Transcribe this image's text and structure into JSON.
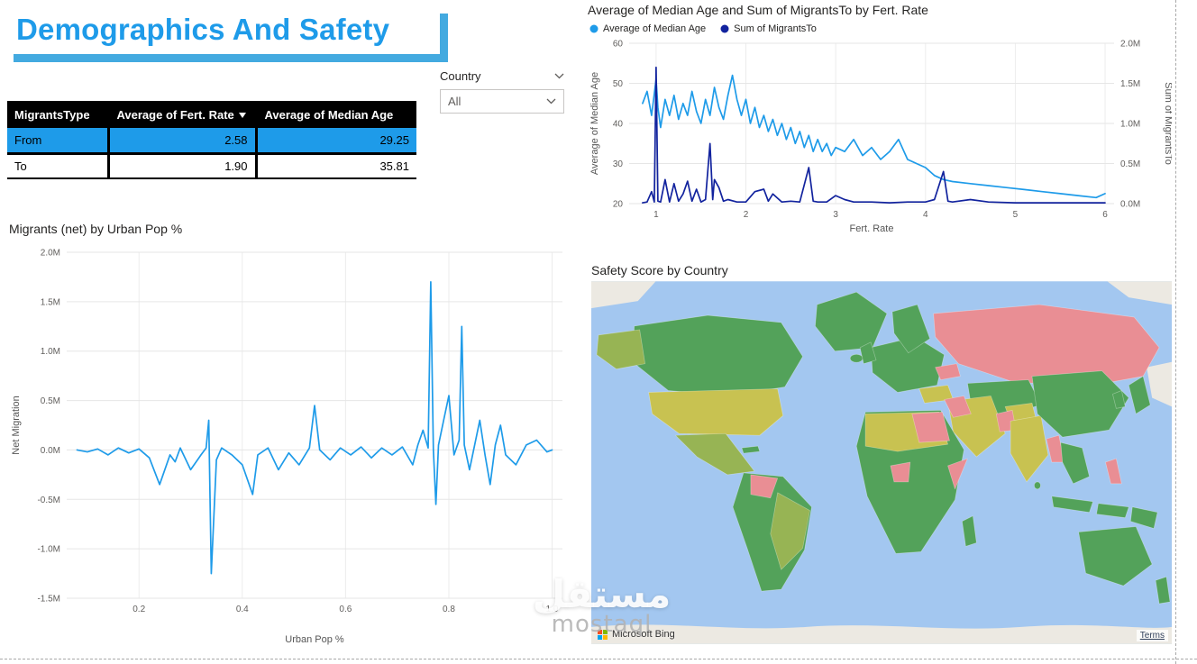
{
  "page": {
    "title": "Demographics And Safety",
    "watermark": {
      "arabic": "مستقل",
      "latin": "mostaql"
    }
  },
  "slicer": {
    "label": "Country",
    "value": "All"
  },
  "table": {
    "columns": [
      "MigrantsType",
      "Average of Fert. Rate",
      "Average of Median Age"
    ],
    "sorted_column": "Average of Fert. Rate",
    "sort_direction": "desc",
    "rows": [
      {
        "type": "From",
        "fert_rate": "2.58",
        "median_age": "29.25",
        "selected": true
      },
      {
        "type": "To",
        "fert_rate": "1.90",
        "median_age": "35.81",
        "selected": false
      }
    ]
  },
  "map": {
    "title": "Safety Score by Country",
    "attribution": "Microsoft Bing",
    "terms_label": "Terms",
    "colors": {
      "ocean": "#A3C7F0",
      "green": "#53A25A",
      "yellow": "#C8C251",
      "yellow_green": "#97B454",
      "pink": "#E98E94",
      "ice": "#ECE9E2"
    }
  },
  "colors": {
    "accent_blue": "#1E9BE9",
    "navy": "#12239E",
    "table_header_bg": "#000000",
    "selected_row": "#1E9BE9",
    "title_shadow": "#43AAE0"
  },
  "chart_data": [
    {
      "type": "line",
      "title": "Average of Median Age and Sum of MigrantsTo by Fert. Rate",
      "legend_position": "top",
      "grid": true,
      "x_axis": {
        "title": "Fert. Rate",
        "min": 0.7,
        "max": 6.1,
        "ticks": [
          {
            "v": 1,
            "l": "1"
          },
          {
            "v": 2,
            "l": "2"
          },
          {
            "v": 3,
            "l": "3"
          },
          {
            "v": 4,
            "l": "4"
          },
          {
            "v": 5,
            "l": "5"
          },
          {
            "v": 6,
            "l": "6"
          }
        ]
      },
      "y_left": {
        "title": "Average of Median Age",
        "min": 20,
        "max": 60,
        "ticks": [
          {
            "v": 20,
            "l": "20"
          },
          {
            "v": 30,
            "l": "30"
          },
          {
            "v": 40,
            "l": "40"
          },
          {
            "v": 50,
            "l": "50"
          },
          {
            "v": 60,
            "l": "60"
          }
        ]
      },
      "y_right": {
        "title": "Sum of MigrantsTo",
        "min": 0,
        "max": 2,
        "unit": "M",
        "ticks": [
          {
            "v": 0,
            "l": "0.0M"
          },
          {
            "v": 0.5,
            "l": "0.5M"
          },
          {
            "v": 1,
            "l": "1.0M"
          },
          {
            "v": 1.5,
            "l": "1.5M"
          },
          {
            "v": 2,
            "l": "2.0M"
          }
        ]
      },
      "series": [
        {
          "name": "Average of Median Age",
          "color": "#1E9BE9",
          "axis": "left",
          "x": [
            0.85,
            0.9,
            0.95,
            1.0,
            1.02,
            1.05,
            1.1,
            1.15,
            1.2,
            1.25,
            1.3,
            1.35,
            1.4,
            1.45,
            1.5,
            1.55,
            1.6,
            1.65,
            1.7,
            1.75,
            1.8,
            1.85,
            1.9,
            1.95,
            2.0,
            2.05,
            2.1,
            2.15,
            2.2,
            2.25,
            2.3,
            2.35,
            2.4,
            2.45,
            2.5,
            2.55,
            2.6,
            2.65,
            2.7,
            2.75,
            2.8,
            2.85,
            2.9,
            2.95,
            3.0,
            3.1,
            3.2,
            3.3,
            3.4,
            3.5,
            3.6,
            3.7,
            3.8,
            3.9,
            4.0,
            4.1,
            4.2,
            4.3,
            4.5,
            4.7,
            4.9,
            5.1,
            5.3,
            5.5,
            5.7,
            5.9,
            6.0
          ],
          "y": [
            45,
            48,
            42,
            51,
            44,
            39,
            46,
            42,
            47,
            41,
            45,
            42,
            48,
            43,
            40,
            46,
            42,
            49,
            44,
            41,
            47,
            52,
            46,
            42,
            46,
            40,
            44,
            39,
            42,
            38,
            41,
            37,
            40,
            36,
            39,
            35,
            38,
            34,
            37,
            33,
            36,
            33,
            35,
            32,
            34,
            33,
            36,
            32,
            34,
            31,
            33,
            36,
            31,
            30,
            29,
            27,
            26,
            25.5,
            25,
            24.5,
            24,
            23.5,
            23,
            22.5,
            22,
            21.5,
            22.5
          ]
        },
        {
          "name": "Sum of MigrantsTo",
          "color": "#12239E",
          "axis": "right",
          "x": [
            0.85,
            0.9,
            0.95,
            0.98,
            1.0,
            1.02,
            1.05,
            1.1,
            1.15,
            1.2,
            1.25,
            1.3,
            1.35,
            1.4,
            1.45,
            1.5,
            1.55,
            1.6,
            1.63,
            1.65,
            1.7,
            1.75,
            1.8,
            1.9,
            2.0,
            2.1,
            2.2,
            2.25,
            2.3,
            2.4,
            2.5,
            2.6,
            2.7,
            2.75,
            2.8,
            2.9,
            3.0,
            3.1,
            3.2,
            3.4,
            3.6,
            3.8,
            4.0,
            4.1,
            4.2,
            4.25,
            4.3,
            4.5,
            4.7,
            5.0,
            5.3,
            5.6,
            5.9,
            6.0
          ],
          "y": [
            0.01,
            0.02,
            0.15,
            0.02,
            1.7,
            0.03,
            0.02,
            0.3,
            0.02,
            0.25,
            0.03,
            0.12,
            0.28,
            0.03,
            0.18,
            0.02,
            0.05,
            0.75,
            0.05,
            0.3,
            0.2,
            0.03,
            0.05,
            0.02,
            0.02,
            0.15,
            0.18,
            0.03,
            0.12,
            0.02,
            0.03,
            0.02,
            0.45,
            0.03,
            0.02,
            0.02,
            0.1,
            0.05,
            0.02,
            0.02,
            0.01,
            0.02,
            0.02,
            0.05,
            0.4,
            0.03,
            0.02,
            0.05,
            0.02,
            0.01,
            0.01,
            0.01,
            0.01,
            0.01
          ]
        }
      ]
    },
    {
      "type": "line",
      "title": "Migrants (net) by Urban Pop %",
      "grid": true,
      "x_axis": {
        "title": "Urban Pop %",
        "min": 0.06,
        "max": 1.02,
        "ticks": [
          {
            "v": 0.2,
            "l": "0.2"
          },
          {
            "v": 0.4,
            "l": "0.4"
          },
          {
            "v": 0.6,
            "l": "0.6"
          },
          {
            "v": 0.8,
            "l": "0.8"
          },
          {
            "v": 1.0,
            "l": "1.0"
          }
        ]
      },
      "y_left": {
        "title": "Net Migration",
        "min": -1.5,
        "max": 2.0,
        "unit": "M",
        "ticks": [
          {
            "v": -1.5,
            "l": "-1.5M"
          },
          {
            "v": -1.0,
            "l": "-1.0M"
          },
          {
            "v": -0.5,
            "l": "-0.5M"
          },
          {
            "v": 0,
            "l": "0.0M"
          },
          {
            "v": 0.5,
            "l": "0.5M"
          },
          {
            "v": 1.0,
            "l": "1.0M"
          },
          {
            "v": 1.5,
            "l": "1.5M"
          },
          {
            "v": 2.0,
            "l": "2.0M"
          }
        ]
      },
      "series": [
        {
          "name": "Migrants (net)",
          "color": "#1E9BE9",
          "axis": "left",
          "x": [
            0.08,
            0.1,
            0.12,
            0.14,
            0.16,
            0.18,
            0.2,
            0.22,
            0.24,
            0.26,
            0.27,
            0.28,
            0.3,
            0.32,
            0.33,
            0.335,
            0.34,
            0.35,
            0.36,
            0.38,
            0.4,
            0.42,
            0.43,
            0.45,
            0.47,
            0.49,
            0.51,
            0.53,
            0.54,
            0.55,
            0.57,
            0.59,
            0.61,
            0.63,
            0.65,
            0.67,
            0.69,
            0.71,
            0.73,
            0.74,
            0.75,
            0.76,
            0.765,
            0.77,
            0.775,
            0.78,
            0.79,
            0.8,
            0.81,
            0.82,
            0.825,
            0.83,
            0.84,
            0.85,
            0.86,
            0.87,
            0.88,
            0.89,
            0.9,
            0.91,
            0.93,
            0.95,
            0.97,
            0.99,
            1.0
          ],
          "y": [
            0.0,
            -0.02,
            0.01,
            -0.05,
            0.02,
            -0.03,
            0.01,
            -0.08,
            -0.35,
            -0.05,
            -0.12,
            0.02,
            -0.2,
            -0.05,
            0.02,
            0.3,
            -1.25,
            -0.1,
            0.02,
            -0.05,
            -0.15,
            -0.45,
            -0.05,
            0.02,
            -0.2,
            -0.03,
            -0.15,
            0.02,
            0.45,
            0.0,
            -0.1,
            0.02,
            -0.05,
            0.03,
            -0.08,
            0.02,
            -0.05,
            0.03,
            -0.15,
            0.05,
            0.2,
            0.02,
            1.7,
            0.0,
            -0.55,
            0.05,
            0.3,
            0.55,
            -0.05,
            0.1,
            1.25,
            0.05,
            -0.2,
            0.05,
            0.3,
            -0.05,
            -0.35,
            0.05,
            0.25,
            -0.05,
            -0.15,
            0.05,
            0.1,
            -0.02,
            0.0
          ]
        }
      ]
    }
  ]
}
